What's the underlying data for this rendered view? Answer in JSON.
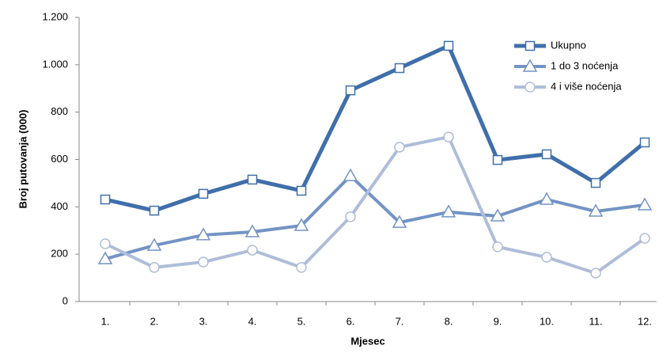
{
  "chart_data": {
    "type": "line",
    "y_label": "Broj putovanja (000)",
    "x_label": "Mjesec",
    "categories": [
      "1.",
      "2.",
      "3.",
      "4.",
      "5.",
      "6.",
      "7.",
      "8.",
      "9.",
      "10.",
      "11.",
      "12."
    ],
    "ylim": [
      0,
      1200
    ],
    "yticks": [
      0,
      200,
      400,
      600,
      800,
      {
        "value": 1000,
        "label": "1.000"
      },
      {
        "value": 1200,
        "label": "1.200"
      }
    ],
    "grid": false,
    "legend": "top-right",
    "series": [
      {
        "name": "Ukupno",
        "color": "#3f6faa",
        "marker": "square",
        "values": [
          431,
          384,
          455,
          515,
          468,
          892,
          986,
          1080,
          598,
          622,
          501,
          672
        ]
      },
      {
        "name": "1 do 3 noćenja",
        "color": "#7393c4",
        "marker": "triangle",
        "values": [
          180,
          237,
          281,
          294,
          321,
          531,
          334,
          378,
          361,
          431,
          381,
          408
        ]
      },
      {
        "name": "4 i više noćenja",
        "color": "#aebdd8",
        "marker": "circle",
        "values": [
          244,
          144,
          167,
          217,
          144,
          358,
          652,
          695,
          231,
          187,
          120,
          267
        ]
      }
    ]
  }
}
